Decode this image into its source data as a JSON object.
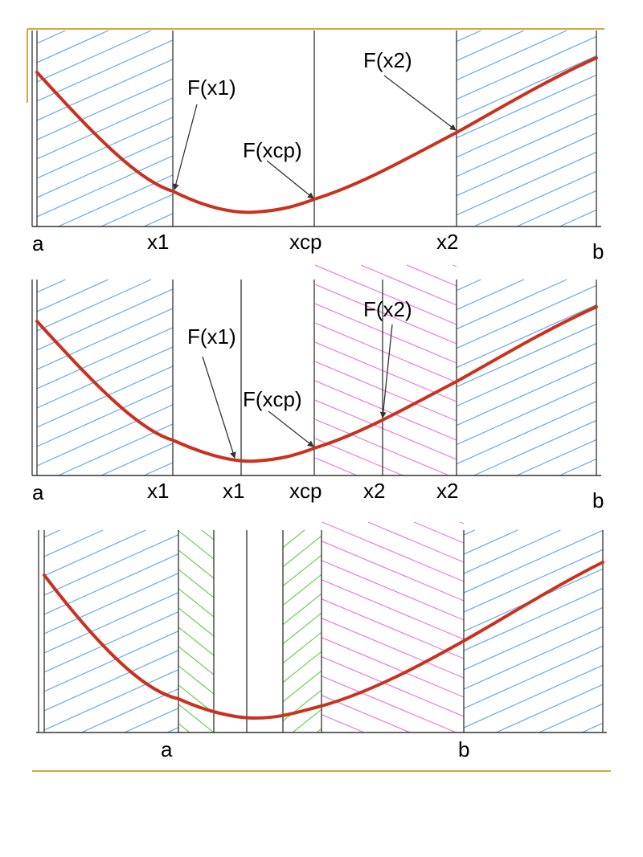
{
  "colors": {
    "accent_rule": "#d9a441",
    "axis": "#333333",
    "curve": "#c8321e",
    "hatch_outer": "#6aa9e0",
    "hatch_mid": "#e77be0",
    "hatch_inner": "#6ccf55"
  },
  "panels": [
    {
      "id": "panel-1",
      "axis_labels": [
        "a",
        "x1",
        "xcp",
        "x2",
        "b"
      ],
      "annotations": [
        "F(x1)",
        "F(xcp)",
        "F(x2)"
      ]
    },
    {
      "id": "panel-2",
      "axis_labels": [
        "a",
        "x1",
        "x1",
        "xcp",
        "x2",
        "x2",
        "b"
      ],
      "annotations": [
        "F(x1)",
        "F(xcp)",
        "F(x2)"
      ]
    },
    {
      "id": "panel-3",
      "axis_labels": [
        "a",
        "b"
      ],
      "annotations": []
    }
  ]
}
